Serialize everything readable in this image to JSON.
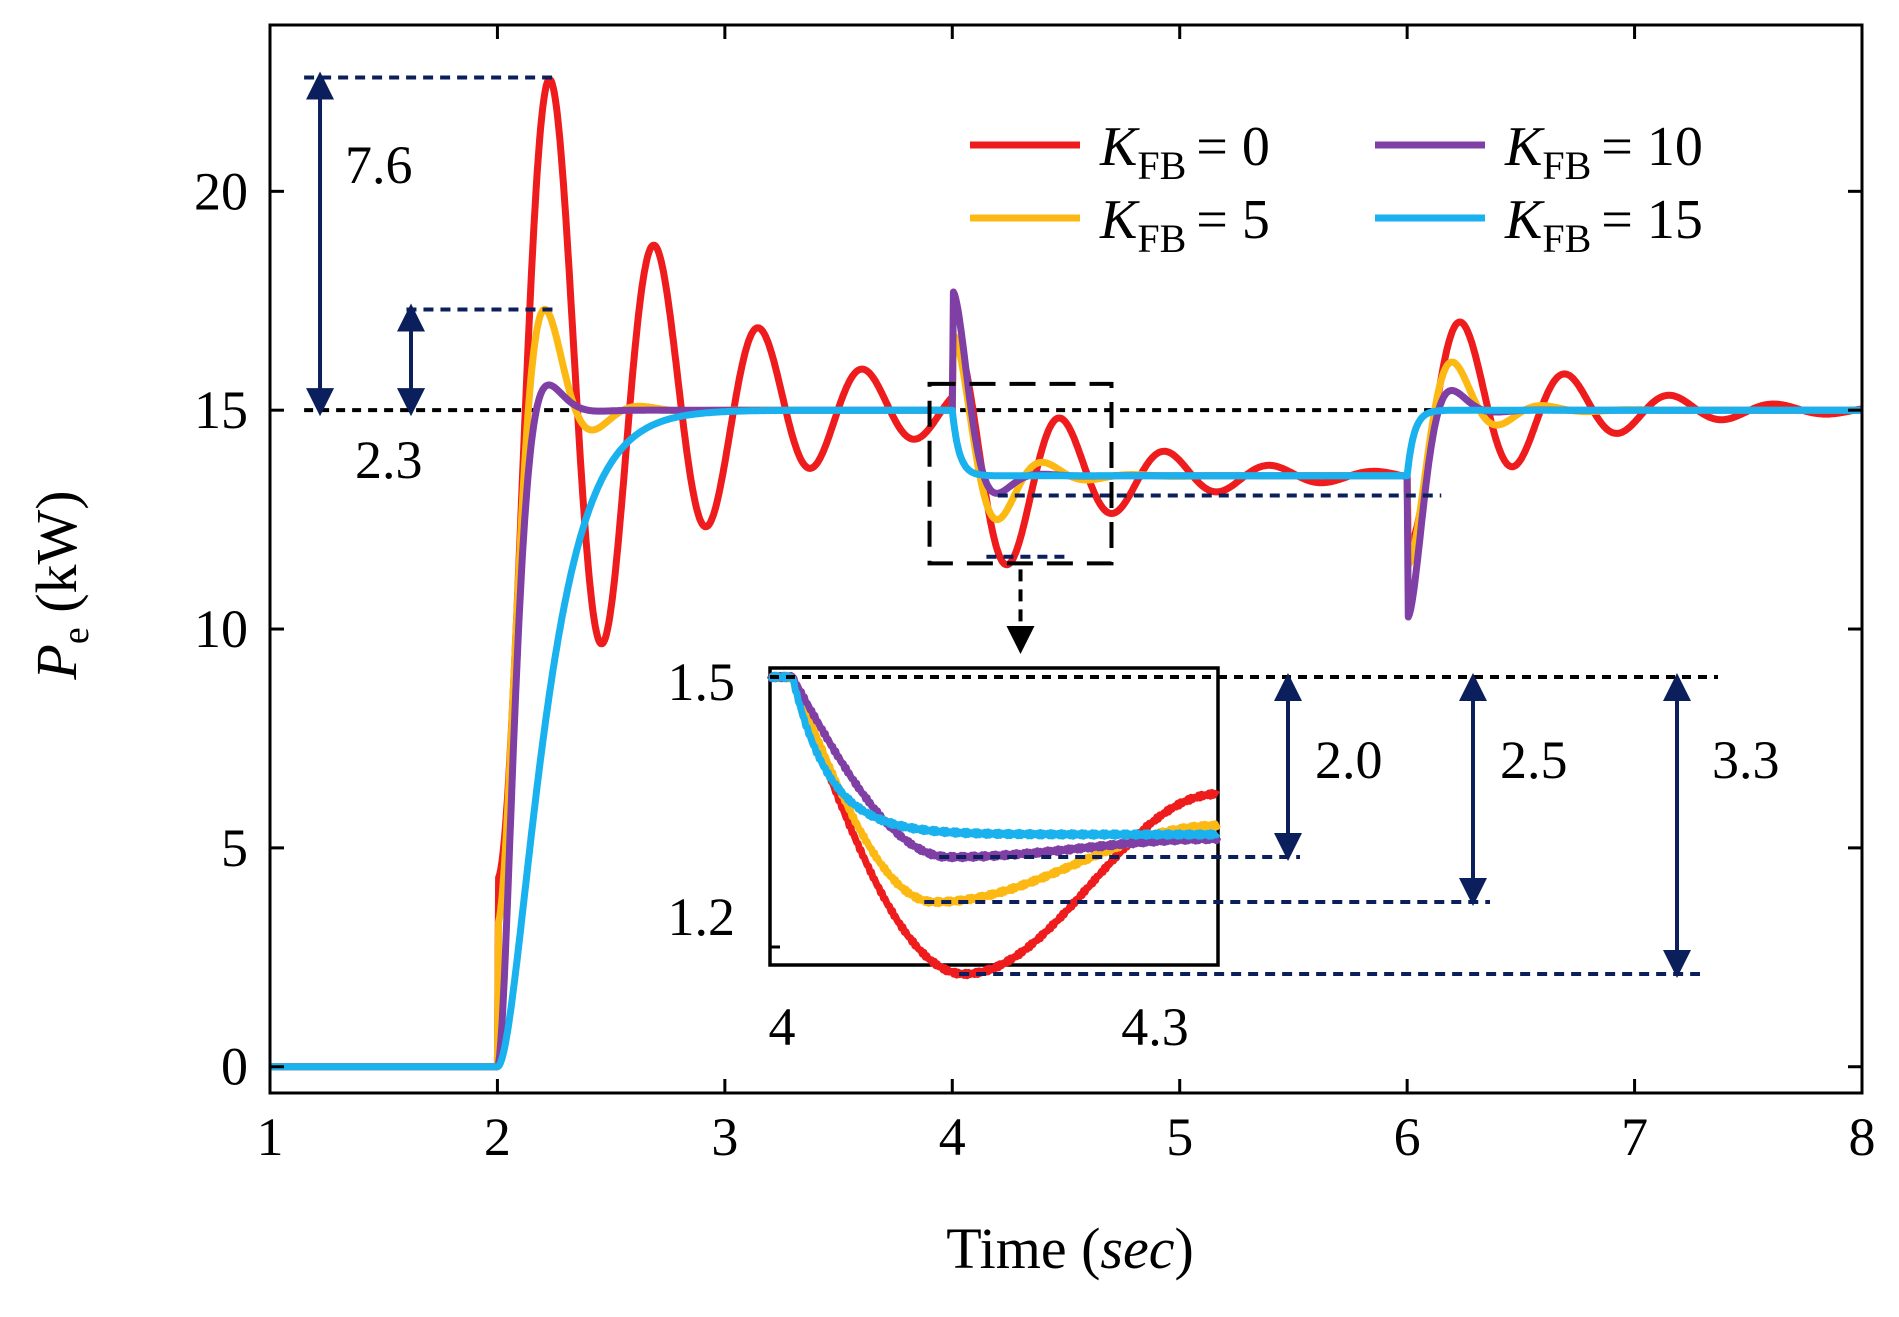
{
  "chart_data": {
    "type": "line",
    "xlabel_main": "Time (",
    "xlabel_unit": "sec",
    "xlabel_close": ")",
    "ylabel_symbol": "P",
    "ylabel_sub": "e",
    "ylabel_unit": " (kW)",
    "xlim": [
      1,
      8
    ],
    "ylim": [
      -0.6,
      23.8
    ],
    "x_ticks": [
      1,
      2,
      3,
      4,
      5,
      6,
      7,
      8
    ],
    "x_tick_labels": [
      "1",
      "2",
      "3",
      "4",
      "5",
      "6",
      "7",
      "8"
    ],
    "y_ticks": [
      0,
      5,
      10,
      15,
      20
    ],
    "y_tick_labels": [
      "0",
      "5",
      "10",
      "15",
      "20"
    ],
    "reference_level": 15,
    "step_schedule": [
      {
        "t": 2.0,
        "from": 0,
        "to": 15
      },
      {
        "t": 4.0,
        "from": 15,
        "to": 13.5
      },
      {
        "t": 6.0,
        "from": 13.5,
        "to": 15
      }
    ],
    "series": [
      {
        "name": "KFB=0",
        "legend_symbol": "K",
        "legend_sub": "FB",
        "legend_value": "= 0",
        "color": "#ee1c1c",
        "peak_overshoot_kw": 7.6,
        "peak_value_kw": 22.6,
        "dip_value_kw": 11.7,
        "inset_drop": 3.3
      },
      {
        "name": "KFB=5",
        "legend_symbol": "K",
        "legend_sub": "FB",
        "legend_value": "= 5",
        "color": "#fdb913",
        "peak_overshoot_kw": 2.3,
        "peak_value_kw": 17.3,
        "dip_value_kw": 12.5,
        "inset_drop": 2.5
      },
      {
        "name": "KFB=10",
        "legend_symbol": "K",
        "legend_sub": "FB",
        "legend_value": "= 10",
        "color": "#7f3fa5",
        "peak_value_kw": 15.2,
        "dip_value_kw": 13.1,
        "inset_drop": 2.0
      },
      {
        "name": "KFB=15",
        "legend_symbol": "K",
        "legend_sub": "FB",
        "legend_value": "= 15",
        "color": "#1ab2ee",
        "dip_value_kw": 13.5
      }
    ],
    "annotations": {
      "overshoot_large": "7.6",
      "overshoot_small": "2.3"
    },
    "zoom_box": {
      "x_range": [
        3.9,
        4.7
      ],
      "y_range": [
        11.5,
        15.6
      ]
    },
    "inset": {
      "xlim": [
        4.0,
        4.3
      ],
      "ylim": [
        1.18,
        1.51
      ],
      "x_tick_labels": [
        "4",
        "4.3"
      ],
      "y_tick_labels": [
        "1.5",
        "1.2"
      ],
      "y_ticks": [
        1.5,
        1.2
      ],
      "x_ticks": [
        4.0,
        4.3
      ],
      "drop_labels": [
        "2.0",
        "2.5",
        "3.3"
      ]
    },
    "colors": {
      "annotation": "#0b1f5c",
      "reference": "#000000"
    }
  }
}
